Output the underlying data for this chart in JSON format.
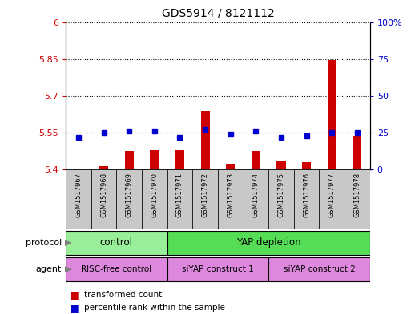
{
  "title": "GDS5914 / 8121112",
  "samples": [
    "GSM1517967",
    "GSM1517968",
    "GSM1517969",
    "GSM1517970",
    "GSM1517971",
    "GSM1517972",
    "GSM1517973",
    "GSM1517974",
    "GSM1517975",
    "GSM1517976",
    "GSM1517977",
    "GSM1517978"
  ],
  "transformed_count": [
    5.402,
    5.413,
    5.476,
    5.479,
    5.479,
    5.637,
    5.424,
    5.476,
    5.436,
    5.429,
    5.845,
    5.536
  ],
  "percentile_rank": [
    22,
    25,
    26,
    26,
    22,
    27,
    24,
    26,
    22,
    23,
    25,
    25
  ],
  "ylim_left": [
    5.4,
    6.0
  ],
  "ylim_right": [
    0,
    100
  ],
  "yticks_left": [
    5.4,
    5.55,
    5.7,
    5.85,
    6.0
  ],
  "yticks_right": [
    0,
    25,
    50,
    75,
    100
  ],
  "ytick_labels_left": [
    "5.4",
    "5.55",
    "5.7",
    "5.85",
    "6"
  ],
  "ytick_labels_right": [
    "0",
    "25",
    "50",
    "75",
    "100%"
  ],
  "bar_color": "#cc0000",
  "dot_color": "#0000cc",
  "plot_bg_color": "#ffffff",
  "xtick_bg_color": "#c8c8c8",
  "protocol_control_color": "#99ee99",
  "protocol_yap_color": "#55dd55",
  "agent_color": "#dd88dd",
  "dotted_line_color": "#000000",
  "base_value": 5.4,
  "bar_width": 0.35,
  "dot_size": 5
}
